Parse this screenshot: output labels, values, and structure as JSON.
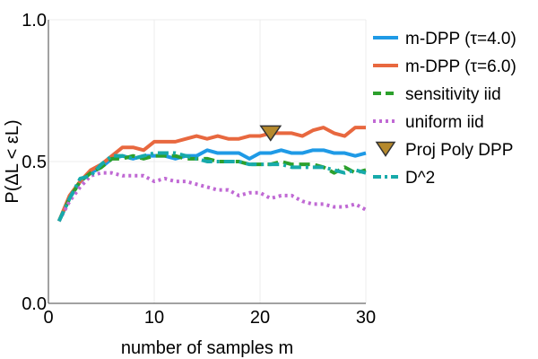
{
  "chart_data": {
    "type": "line",
    "title": "",
    "xlabel": "number of samples m",
    "ylabel": "P(ΔL < εL)",
    "xlim": [
      0,
      30
    ],
    "ylim": [
      0,
      1
    ],
    "xticks": [
      0,
      10,
      20,
      30
    ],
    "xtick_labels": [
      "0",
      "10",
      "20",
      "30"
    ],
    "yticks": [
      0,
      0.5,
      1
    ],
    "ytick_labels": [
      "0.0",
      "0.5",
      "1.0"
    ],
    "grid": true,
    "legend_position": "right",
    "series": [
      {
        "name": "m-DPP (τ=4.0)",
        "kind": "line",
        "style": "solid",
        "color": "#1f9ae6",
        "x": [
          1,
          2,
          3,
          4,
          5,
          6,
          7,
          8,
          9,
          10,
          11,
          12,
          13,
          14,
          15,
          16,
          17,
          18,
          19,
          20,
          21,
          22,
          23,
          24,
          25,
          26,
          27,
          28,
          29,
          30
        ],
        "y": [
          0.29,
          0.37,
          0.43,
          0.46,
          0.48,
          0.51,
          0.52,
          0.51,
          0.52,
          0.52,
          0.52,
          0.51,
          0.52,
          0.52,
          0.54,
          0.53,
          0.53,
          0.53,
          0.51,
          0.53,
          0.53,
          0.54,
          0.53,
          0.53,
          0.54,
          0.54,
          0.53,
          0.53,
          0.52,
          0.53
        ]
      },
      {
        "name": "m-DPP (τ=6.0)",
        "kind": "line",
        "style": "solid",
        "color": "#e8683f",
        "x": [
          1,
          2,
          3,
          4,
          5,
          6,
          7,
          8,
          9,
          10,
          11,
          12,
          13,
          14,
          15,
          16,
          17,
          18,
          19,
          20,
          21,
          22,
          23,
          24,
          25,
          26,
          27,
          28,
          29,
          30
        ],
        "y": [
          0.29,
          0.38,
          0.43,
          0.47,
          0.49,
          0.52,
          0.55,
          0.55,
          0.54,
          0.57,
          0.57,
          0.57,
          0.58,
          0.59,
          0.58,
          0.59,
          0.58,
          0.58,
          0.59,
          0.59,
          0.6,
          0.6,
          0.6,
          0.59,
          0.61,
          0.62,
          0.6,
          0.59,
          0.62,
          0.62
        ]
      },
      {
        "name": "sensitivity iid",
        "kind": "line",
        "style": "dash",
        "color": "#2ca02c",
        "x": [
          1,
          2,
          3,
          4,
          5,
          6,
          7,
          8,
          9,
          10,
          11,
          12,
          13,
          14,
          15,
          16,
          17,
          18,
          19,
          20,
          21,
          22,
          23,
          24,
          25,
          26,
          27,
          28,
          29,
          30
        ],
        "y": [
          0.29,
          0.37,
          0.43,
          0.46,
          0.48,
          0.51,
          0.51,
          0.52,
          0.51,
          0.52,
          0.52,
          0.52,
          0.51,
          0.51,
          0.51,
          0.5,
          0.5,
          0.5,
          0.49,
          0.49,
          0.49,
          0.5,
          0.49,
          0.49,
          0.49,
          0.48,
          0.46,
          0.48,
          0.46,
          0.47
        ]
      },
      {
        "name": "uniform iid",
        "kind": "line",
        "style": "dot",
        "color": "#c069d4",
        "x": [
          1,
          2,
          3,
          4,
          5,
          6,
          7,
          8,
          9,
          10,
          11,
          12,
          13,
          14,
          15,
          16,
          17,
          18,
          19,
          20,
          21,
          22,
          23,
          24,
          25,
          26,
          27,
          28,
          29,
          30
        ],
        "y": [
          0.29,
          0.36,
          0.41,
          0.45,
          0.46,
          0.46,
          0.45,
          0.45,
          0.45,
          0.43,
          0.44,
          0.43,
          0.43,
          0.42,
          0.41,
          0.4,
          0.4,
          0.38,
          0.39,
          0.39,
          0.37,
          0.38,
          0.38,
          0.36,
          0.35,
          0.35,
          0.34,
          0.34,
          0.35,
          0.33
        ]
      },
      {
        "name": "Proj Poly DPP",
        "kind": "marker",
        "marker": "triangle-down",
        "color": "#b5892c",
        "x": [
          21
        ],
        "y": [
          0.6
        ]
      },
      {
        "name": "D^2",
        "kind": "line",
        "style": "dashdot",
        "color": "#17aaaa",
        "x": [
          1,
          2,
          3,
          4,
          5,
          6,
          7,
          8,
          9,
          10,
          11,
          12,
          13,
          14,
          15,
          16,
          17,
          18,
          19,
          20,
          21,
          22,
          23,
          24,
          25,
          26,
          27,
          28,
          29,
          30
        ],
        "y": [
          0.29,
          0.37,
          0.44,
          0.45,
          0.49,
          0.52,
          0.52,
          0.51,
          0.52,
          0.53,
          0.53,
          0.53,
          0.52,
          0.51,
          0.5,
          0.5,
          0.5,
          0.5,
          0.49,
          0.49,
          0.49,
          0.49,
          0.48,
          0.48,
          0.48,
          0.48,
          0.47,
          0.46,
          0.47,
          0.46
        ]
      }
    ]
  }
}
